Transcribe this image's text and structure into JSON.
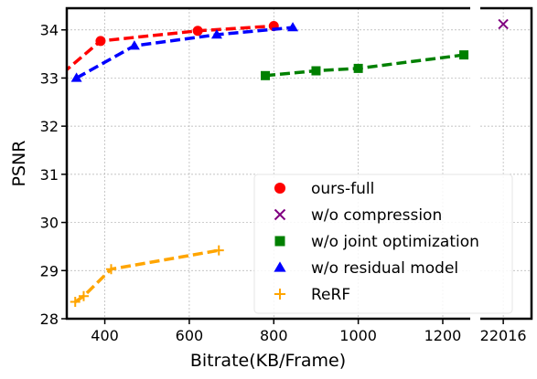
{
  "chart_data": {
    "type": "line",
    "xlabel": "Bitrate(KB/Frame)",
    "ylabel": "PSNR",
    "ylim": [
      28,
      34.45
    ],
    "xlim_main": [
      310,
      1265
    ],
    "xlim_break": [
      21850,
      22220
    ],
    "x_ticks": [
      400,
      600,
      800,
      1000,
      1200
    ],
    "x_break_ticks": [
      22016
    ],
    "y_ticks": [
      28,
      29,
      30,
      31,
      32,
      33,
      34
    ],
    "broken_x_axis": true,
    "grid": true,
    "legend_position": "lower-right",
    "series": [
      {
        "name": "ours-full",
        "color": "#ff0000",
        "marker": "circle",
        "x": [
          300,
          390,
          620,
          800
        ],
        "y": [
          33.1,
          33.77,
          33.98,
          34.08
        ]
      },
      {
        "name": "w/o compression",
        "color": "#800080",
        "marker": "x",
        "x": [
          22016
        ],
        "y": [
          34.12
        ]
      },
      {
        "name": "w/o joint optimization",
        "color": "#008000",
        "marker": "square",
        "x": [
          780,
          900,
          1000,
          1250
        ],
        "y": [
          33.05,
          33.15,
          33.2,
          33.48
        ]
      },
      {
        "name": "w/o residual model",
        "color": "#0000ff",
        "marker": "triangle",
        "x": [
          333,
          470,
          665,
          845
        ],
        "y": [
          33.0,
          33.67,
          33.9,
          34.05
        ]
      },
      {
        "name": "ReRF",
        "color": "#ffa500",
        "marker": "plus",
        "x": [
          330,
          350,
          415,
          670
        ],
        "y": [
          28.35,
          28.47,
          29.03,
          29.42
        ]
      }
    ]
  }
}
